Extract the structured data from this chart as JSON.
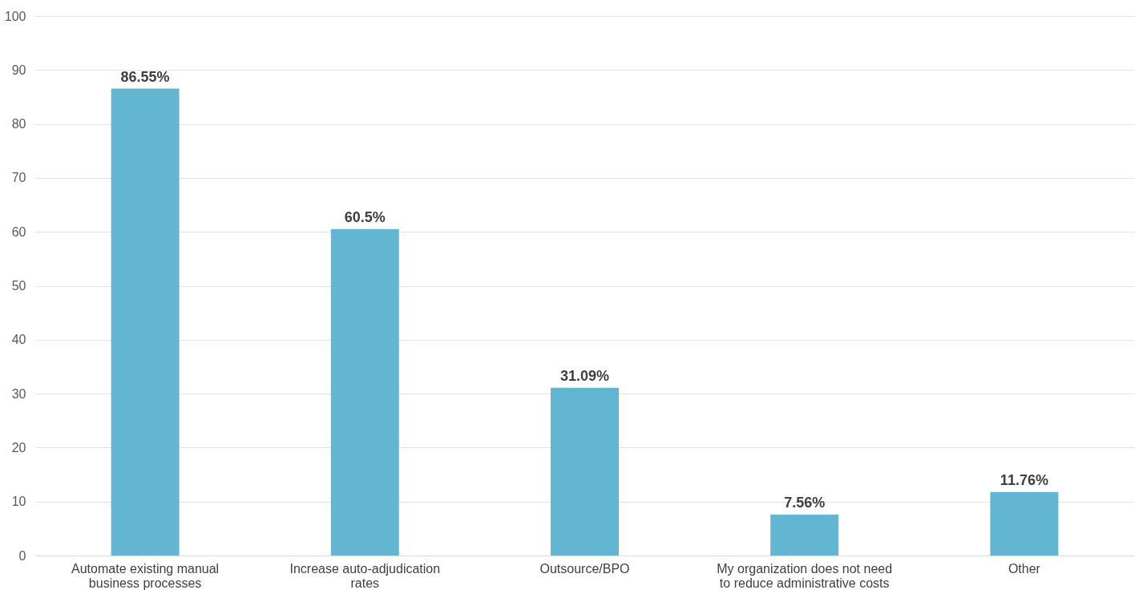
{
  "chart_data": {
    "type": "bar",
    "categories": [
      "Automate existing manual\nbusiness processes",
      "Increase auto-adjudication\nrates",
      "Outsource/BPO",
      "My organization does not need\nto reduce administrative costs",
      "Other"
    ],
    "values": [
      86.55,
      60.5,
      31.09,
      7.56,
      11.76
    ],
    "value_labels": [
      "86.55%",
      "60.5%",
      "31.09%",
      "7.56%",
      "11.76%"
    ],
    "color": "#62b6d1",
    "ylim": [
      0,
      100
    ],
    "yticks": [
      0,
      10,
      20,
      30,
      40,
      50,
      60,
      70,
      80,
      90,
      100
    ],
    "grid": "y"
  }
}
